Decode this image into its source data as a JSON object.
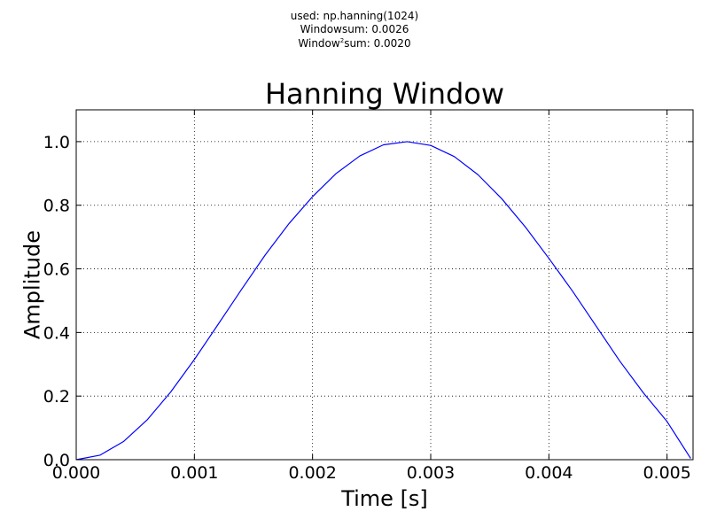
{
  "annotation": {
    "line1": "used: np.hanning(1024)",
    "line2": "Windowsum: 0.0026",
    "line3_prefix": "Window",
    "line3_sup": "2",
    "line3_suffix": "sum: 0.0020"
  },
  "chart_data": {
    "type": "line",
    "title": "Hanning Window",
    "xlabel": "Time [s]",
    "ylabel": "Amplitude",
    "xlim": [
      0.0,
      0.00522
    ],
    "ylim": [
      0.0,
      1.1
    ],
    "xticks": [
      0.0,
      0.001,
      0.002,
      0.003,
      0.004,
      0.005
    ],
    "xtick_labels": [
      "0.000",
      "0.001",
      "0.002",
      "0.003",
      "0.004",
      "0.005"
    ],
    "yticks": [
      0.0,
      0.2,
      0.4,
      0.6,
      0.8,
      1.0
    ],
    "ytick_labels": [
      "0.0",
      "0.2",
      "0.4",
      "0.6",
      "0.8",
      "1.0"
    ],
    "grid": true,
    "series": [
      {
        "color": "#0000ff",
        "x": [
          0.0,
          0.0002,
          0.0004,
          0.0006,
          0.0008,
          0.001,
          0.0012,
          0.0014,
          0.0016,
          0.0018,
          0.002,
          0.0022,
          0.0024,
          0.0026,
          0.0028,
          0.003,
          0.0032,
          0.0034,
          0.0036,
          0.0038,
          0.004,
          0.0042,
          0.0044,
          0.0046,
          0.0048,
          0.005,
          0.0052
        ],
        "values": [
          0.0,
          0.014,
          0.057,
          0.125,
          0.213,
          0.315,
          0.425,
          0.536,
          0.644,
          0.742,
          0.827,
          0.9,
          0.955,
          0.99,
          1.0,
          0.988,
          0.953,
          0.896,
          0.821,
          0.732,
          0.633,
          0.53,
          0.42,
          0.31,
          0.21,
          0.12,
          0.004
        ]
      }
    ]
  }
}
